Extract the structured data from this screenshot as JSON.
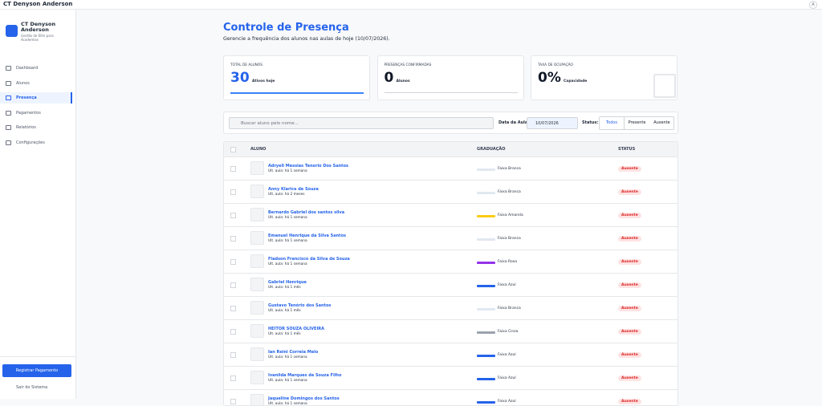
{
  "header": {
    "title": "CT Denyson Anderson",
    "avatar": "A"
  },
  "sidebar": {
    "brand": "CT Denyson Anderson",
    "tagline": "Gestão de Elite para Academias",
    "nav": [
      {
        "label": "Dashboard",
        "active": false
      },
      {
        "label": "Alunos",
        "active": false
      },
      {
        "label": "Presença",
        "active": true
      },
      {
        "label": "Pagamentos",
        "active": false
      },
      {
        "label": "Relatórios",
        "active": false
      },
      {
        "label": "Configurações",
        "active": false
      }
    ],
    "primary_action": "Registrar Pagamento",
    "logout": "Sair do Sistema"
  },
  "page": {
    "title": "Controle de Presença",
    "subtitle": "Gerencie a frequência dos alunos nas aulas de hoje (10/07/2026)."
  },
  "stats": [
    {
      "label": "TOTAL DE ALUNOS",
      "value": "30",
      "caption": "Ativos hoje"
    },
    {
      "label": "PRESENÇAS CONFIRMADAS",
      "value": "0",
      "caption": "Alunos"
    },
    {
      "label": "TAXA DE OCUPAÇÃO",
      "value": "0%",
      "caption": "Capacidade"
    }
  ],
  "filters": {
    "search_placeholder": "Buscar aluno pelo nome...",
    "date_label": "Data da Aula:",
    "date": "10/07/2026",
    "status_label": "Status:",
    "status_options": [
      {
        "label": "Todos",
        "active": true
      },
      {
        "label": "Presente",
        "active": false
      },
      {
        "label": "Ausente",
        "active": false
      }
    ]
  },
  "table": {
    "columns": [
      "ALUNO",
      "GRADUAÇÃO",
      "STATUS"
    ],
    "rows": [
      {
        "name": "Adryell Messias Tenorio Dos Santos",
        "last_class": "Ult. aula: há 1 semana",
        "belt": "Faixa Branca",
        "belt_color": "#e2e8f0",
        "status": "Ausente"
      },
      {
        "name": "Anny Klarice de Souza",
        "last_class": "Ult. aula: há 2 meses",
        "belt": "Faixa Branca",
        "belt_color": "#e2e8f0",
        "status": "Ausente"
      },
      {
        "name": "Bernardo Gabriel dos santos silva",
        "last_class": "Ult. aula: há 1 semana",
        "belt": "Faixa Amarela",
        "belt_color": "#facc15",
        "status": "Ausente"
      },
      {
        "name": "Emanuel Henrique da Silva Santos",
        "last_class": "Ult. aula: há 1 semana",
        "belt": "Faixa Branca",
        "belt_color": "#e2e8f0",
        "status": "Ausente"
      },
      {
        "name": "Fladson Francisco da Silva de Souza",
        "last_class": "Ult. aula: há 1 semana",
        "belt": "Faixa Roxa",
        "belt_color": "#9333ea",
        "status": "Ausente"
      },
      {
        "name": "Gabriel Henrique",
        "last_class": "Ult. aula: há 1 mês",
        "belt": "Faixa Azul",
        "belt_color": "#2563eb",
        "status": "Ausente"
      },
      {
        "name": "Gustavo Tenório dos Santos",
        "last_class": "Ult. aula: há 1 mês",
        "belt": "Faixa Branca",
        "belt_color": "#e2e8f0",
        "status": "Ausente"
      },
      {
        "name": "HEITOR SOUZA OLIVEIRA",
        "last_class": "Ult. aula: há 1 mês",
        "belt": "Faixa Cinza",
        "belt_color": "#9ca3af",
        "status": "Ausente"
      },
      {
        "name": "Ian Reini Correia Melo",
        "last_class": "Ult. aula: há 1 semana",
        "belt": "Faixa Azul",
        "belt_color": "#2563eb",
        "status": "Ausente"
      },
      {
        "name": "Ivanilda Marques de Souza Filho",
        "last_class": "Ult. aula: há 1 semana",
        "belt": "Faixa Azul",
        "belt_color": "#2563eb",
        "status": "Ausente"
      },
      {
        "name": "Jaqueline Domingos dos Santos",
        "last_class": "Ult. aula: há 1 semana",
        "belt": "Faixa Azul",
        "belt_color": "#2563eb",
        "status": "Ausente"
      }
    ]
  }
}
